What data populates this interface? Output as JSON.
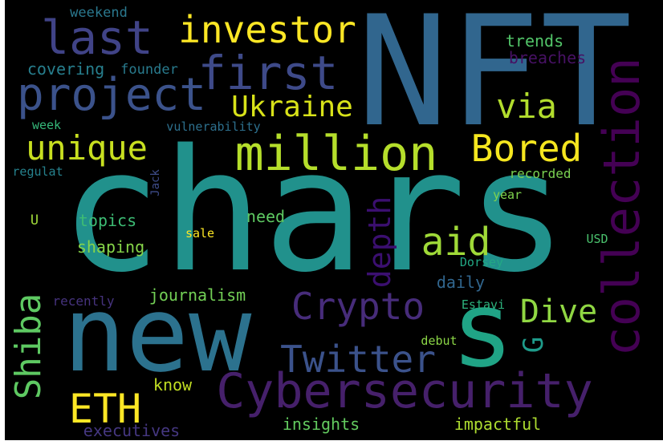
{
  "wordcloud": {
    "background": "#000000",
    "words": [
      {
        "text": "chars",
        "color": "#21918c"
      },
      {
        "text": "NFT",
        "color": "#31668e"
      },
      {
        "text": "new",
        "color": "#2c728e"
      },
      {
        "text": "Cybersecurity",
        "color": "#46206b"
      },
      {
        "text": "collection",
        "color": "#440154"
      },
      {
        "text": "s",
        "color": "#20a486"
      },
      {
        "text": "million",
        "color": "#b5de2b"
      },
      {
        "text": "project",
        "color": "#3b528b"
      },
      {
        "text": "first",
        "color": "#3e4a89"
      },
      {
        "text": "last",
        "color": "#404387"
      },
      {
        "text": "investor",
        "color": "#fde725"
      },
      {
        "text": "Crypto",
        "color": "#472c7a"
      },
      {
        "text": "Twitter",
        "color": "#3b528b"
      },
      {
        "text": "ETH",
        "color": "#fde725"
      },
      {
        "text": "Bored",
        "color": "#f5e61f"
      },
      {
        "text": "unique",
        "color": "#c8e020"
      },
      {
        "text": "Ukraine",
        "color": "#d8e219"
      },
      {
        "text": "via",
        "color": "#b2dd2d"
      },
      {
        "text": "aid",
        "color": "#9fd938"
      },
      {
        "text": "Shiba",
        "color": "#5ec962"
      },
      {
        "text": "Dive",
        "color": "#90d743"
      },
      {
        "text": "depth",
        "color": "#3b0f70"
      },
      {
        "text": "G",
        "color": "#1e9b8a"
      },
      {
        "text": "weekend",
        "color": "#2a788e"
      },
      {
        "text": "trends",
        "color": "#52c569"
      },
      {
        "text": "breaches",
        "color": "#471164"
      },
      {
        "text": "covering",
        "color": "#277f8e"
      },
      {
        "text": "founder",
        "color": "#297b8e"
      },
      {
        "text": "week",
        "color": "#35b779"
      },
      {
        "text": "vulnerability",
        "color": "#2d708e"
      },
      {
        "text": "regulat",
        "color": "#26828e"
      },
      {
        "text": "Jack",
        "color": "#3e4c8a"
      },
      {
        "text": "recorded",
        "color": "#7ad151"
      },
      {
        "text": "year",
        "color": "#7fd34e"
      },
      {
        "text": "U",
        "color": "#a0da39"
      },
      {
        "text": "topics",
        "color": "#3dbc74"
      },
      {
        "text": "need",
        "color": "#5ec962"
      },
      {
        "text": "sale",
        "color": "#fde725"
      },
      {
        "text": "USD",
        "color": "#4ac16d"
      },
      {
        "text": "shaping",
        "color": "#86d549"
      },
      {
        "text": "daily",
        "color": "#31668e"
      },
      {
        "text": "Dorsey",
        "color": "#22a884"
      },
      {
        "text": "journalism",
        "color": "#73d056"
      },
      {
        "text": "recently",
        "color": "#46337e"
      },
      {
        "text": "Estavi",
        "color": "#2db27d"
      },
      {
        "text": "debut",
        "color": "#8bd646"
      },
      {
        "text": "know",
        "color": "#c2df23"
      },
      {
        "text": "insights",
        "color": "#63cb5f"
      },
      {
        "text": "impactful",
        "color": "#addc30"
      },
      {
        "text": "executives",
        "color": "#453781"
      }
    ]
  }
}
